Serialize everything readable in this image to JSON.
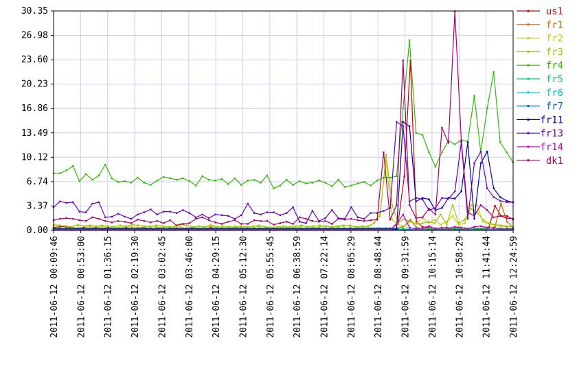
{
  "chart_data": {
    "type": "line",
    "title": "",
    "xlabel": "",
    "ylabel": "",
    "ylim": [
      0,
      30.35
    ],
    "grid": true,
    "legend_position": "right",
    "y_ticks": [
      "0.00",
      "3.37",
      "6.74",
      "10.12",
      "13.49",
      "16.86",
      "20.23",
      "23.60",
      "26.98",
      "30.35"
    ],
    "x_ticks": [
      "2011-06-12 00:09:46",
      "2011-06-12 00:53:00",
      "2011-06-12 01:36:15",
      "2011-06-12 02:19:30",
      "2011-06-12 03:02:45",
      "2011-06-12 03:46:00",
      "2011-06-12 04:29:15",
      "2011-06-12 05:12:30",
      "2011-06-12 05:55:45",
      "2011-06-12 06:38:59",
      "2011-06-12 07:22:14",
      "2011-06-12 08:05:29",
      "2011-06-12 08:48:44",
      "2011-06-12 09:31:59",
      "2011-06-12 10:15:14",
      "2011-06-12 10:58:29",
      "2011-06-12 11:41:44",
      "2011-06-12 12:24:59"
    ],
    "x_start": "2011-06-12 00:09:46",
    "x_end": "2011-06-12 12:24:59",
    "series": [
      {
        "name": "us1",
        "color": "#cc0000",
        "values": [
          0.4,
          0.5,
          0.5,
          0.4,
          0.3,
          0.4,
          0.3,
          0.4,
          0.3,
          0.4,
          0.3,
          0.3,
          0.4,
          0.3,
          0.3,
          0.4,
          0.3,
          0.3,
          0.4,
          0.5,
          0.4,
          0.3,
          0.3,
          0.4,
          0.3,
          0.3,
          0.4,
          0.3,
          0.3,
          0.3,
          0.4,
          0.3,
          0.3,
          0.3,
          0.3,
          0.3,
          0.3,
          0.3,
          0.3,
          0.3,
          0.3,
          0.3,
          0.3,
          0.3,
          0.3,
          0.3,
          0.3,
          0.3,
          0.3,
          0.3,
          0.3,
          0.3,
          0.3,
          0.3,
          0.3,
          0.3,
          0.3,
          1.2,
          7.5,
          23.5,
          1.2,
          0.5,
          0.4,
          0.3,
          0.3,
          0.4,
          0.3,
          0.4,
          0.3,
          0.3,
          0.3,
          0.3,
          0.4,
          3.4,
          2.0,
          2.0,
          1.5
        ]
      },
      {
        "name": "fr1",
        "color": "#cc6600",
        "values": [
          0.2,
          0.2,
          0.2,
          0.2,
          0.3,
          0.2,
          0.2,
          0.2,
          0.2,
          0.2,
          0.2,
          0.2,
          0.2,
          0.2,
          0.2,
          0.2,
          0.2,
          0.2,
          0.2,
          0.2,
          0.2,
          0.2,
          0.2,
          0.2,
          0.2,
          0.2,
          0.2,
          0.2,
          0.2,
          0.2,
          0.2,
          0.2,
          0.2,
          0.2,
          0.2,
          0.2,
          0.2,
          0.2,
          0.2,
          0.2,
          0.2,
          0.2,
          0.2,
          0.2,
          0.2,
          0.2,
          0.2,
          0.2,
          0.2,
          0.2,
          0.2,
          0.2,
          0.2,
          0.2,
          0.2,
          0.2,
          0.2,
          0.3,
          0.6,
          1.5,
          0.4,
          0.3,
          0.2,
          0.2,
          0.2,
          0.2,
          0.2,
          0.2,
          0.2,
          0.3,
          0.2,
          0.2,
          0.3,
          0.5,
          3.7,
          1.2,
          0.4
        ]
      },
      {
        "name": "fr2",
        "color": "#cccc00",
        "values": [
          0.6,
          0.7,
          0.6,
          0.5,
          0.8,
          0.6,
          0.5,
          0.6,
          0.5,
          0.6,
          0.5,
          0.4,
          0.6,
          0.5,
          0.4,
          0.5,
          0.6,
          0.5,
          0.4,
          0.5,
          0.4,
          0.6,
          0.7,
          0.5,
          0.6,
          0.4,
          0.8,
          0.5,
          0.4,
          0.5,
          0.6,
          0.4,
          0.5,
          0.4,
          0.6,
          0.5,
          0.4,
          0.5,
          0.4,
          0.5,
          0.4,
          0.6,
          0.5,
          0.4,
          0.5,
          0.6,
          0.4,
          0.5,
          0.6,
          0.7,
          0.5,
          0.4,
          0.6,
          1.0,
          2.5,
          9.5,
          1.5,
          0.8,
          0.6,
          1.2,
          0.9,
          1.8,
          1.0,
          1.5,
          0.8,
          1.2,
          2.0,
          0.8,
          1.0,
          3.5,
          3.5,
          1.2,
          0.9,
          0.7,
          0.6,
          0.5,
          0.5
        ]
      },
      {
        "name": "fr3",
        "color": "#99cc00",
        "values": [
          0.8,
          0.7,
          0.6,
          0.5,
          0.7,
          0.6,
          0.7,
          0.6,
          0.7,
          0.6,
          0.5,
          0.7,
          0.6,
          0.8,
          0.7,
          0.6,
          0.5,
          0.7,
          0.6,
          0.5,
          0.6,
          0.9,
          0.7,
          0.5,
          0.6,
          0.5,
          0.6,
          0.5,
          0.6,
          0.5,
          0.4,
          0.6,
          0.5,
          0.6,
          0.7,
          0.5,
          0.4,
          0.5,
          0.6,
          0.5,
          0.6,
          0.7,
          0.5,
          0.6,
          0.7,
          0.6,
          0.5,
          0.6,
          0.7,
          0.6,
          0.5,
          0.6,
          0.5,
          1.0,
          2.0,
          10.5,
          3.5,
          1.0,
          1.6,
          1.2,
          0.9,
          1.0,
          1.2,
          1.0,
          2.2,
          0.8,
          3.5,
          1.0,
          1.5,
          3.0,
          2.5,
          1.5,
          1.0,
          0.8,
          0.7,
          0.6,
          0.5
        ]
      },
      {
        "name": "fr4",
        "color": "#33bb00",
        "values": [
          7.9,
          7.9,
          8.3,
          8.9,
          6.8,
          7.8,
          7.0,
          7.6,
          9.1,
          7.2,
          6.7,
          6.8,
          6.6,
          7.3,
          6.6,
          6.3,
          6.9,
          7.4,
          7.2,
          7.0,
          7.2,
          6.8,
          6.2,
          7.5,
          7.0,
          6.9,
          7.1,
          6.4,
          7.2,
          6.3,
          6.9,
          7.0,
          6.6,
          7.6,
          5.8,
          6.2,
          7.0,
          6.3,
          6.8,
          6.5,
          6.6,
          6.9,
          6.6,
          6.1,
          7.0,
          6.0,
          6.2,
          6.5,
          6.7,
          6.2,
          6.9,
          7.3,
          7.3,
          7.5,
          16.9,
          26.3,
          13.5,
          13.2,
          10.8,
          8.8,
          10.8,
          12.4,
          11.9,
          12.5,
          12.3,
          18.6,
          10.8,
          16.9,
          21.9,
          12.2,
          10.8,
          9.4
        ]
      },
      {
        "name": "fr5",
        "color": "#00cc66",
        "values": [
          0.3,
          0.3,
          0.3,
          0.3,
          0.3,
          0.3,
          0.3,
          0.3,
          0.3,
          0.3,
          0.3,
          0.3,
          0.3,
          0.3,
          0.3,
          0.3,
          0.3,
          0.3,
          0.3,
          0.3,
          0.3,
          0.3,
          0.3,
          0.3,
          0.3,
          0.3,
          0.3,
          0.3,
          0.3,
          0.3,
          0.3,
          0.3,
          0.3,
          0.3,
          0.3,
          0.3,
          0.3,
          0.3,
          0.3,
          0.3,
          0.3,
          0.3,
          0.3,
          0.3,
          0.3,
          0.3,
          0.3,
          0.3,
          0.3,
          0.3,
          0.3,
          0.3,
          0.3,
          0.3,
          0.3,
          0.3,
          0.3,
          0.3,
          0.3,
          0.3,
          0.3,
          0.3,
          0.3,
          0.3,
          0.3,
          0.3,
          0.3,
          0.3,
          0.3,
          0.3,
          0.3,
          0.3
        ]
      },
      {
        "name": "fr6",
        "color": "#00cccc",
        "values": [
          0.1,
          0.1,
          0.1,
          0.1,
          0.1,
          0.1,
          0.1,
          0.1,
          0.1,
          0.1,
          0.1,
          0.1,
          0.1,
          0.1,
          0.1,
          0.1,
          0.1,
          0.1,
          0.1,
          0.1,
          0.1,
          0.1,
          0.1,
          0.1,
          0.1,
          0.1,
          0.1,
          0.1,
          0.1,
          0.1,
          0.1,
          0.1,
          0.1,
          0.1,
          0.1,
          0.1,
          0.1,
          0.1,
          0.1,
          0.1,
          0.1,
          0.1,
          0.1,
          0.1,
          0.1,
          0.1,
          0.1,
          0.1,
          0.1,
          0.1,
          0.1,
          0.1,
          0.1,
          0.1,
          0.1,
          0.1,
          0.1,
          0.1,
          0.1,
          0.1,
          0.1,
          0.1,
          0.1,
          0.1,
          0.1,
          0.1,
          0.1,
          0.1,
          0.1,
          0.1,
          0.1,
          0.1
        ]
      },
      {
        "name": "fr7",
        "color": "#0066cc",
        "values": [
          0.1,
          0.1,
          0.1,
          0.1,
          0.1,
          0.1,
          0.1,
          0.1,
          0.1,
          0.1,
          0.1,
          0.1,
          0.1,
          0.1,
          0.1,
          0.1,
          0.1,
          0.1,
          0.1,
          0.1,
          0.1,
          0.1,
          0.1,
          0.1,
          0.1,
          0.1,
          0.1,
          0.1,
          0.1,
          0.1,
          0.1,
          0.1,
          0.1,
          0.1,
          0.1,
          0.1,
          0.1,
          0.1,
          0.1,
          0.1,
          0.1,
          0.1,
          0.1,
          0.1,
          0.1,
          0.1,
          0.1,
          0.1,
          0.1,
          0.1,
          0.1,
          0.1,
          0.1,
          0.1,
          0.1,
          0.1,
          0.1,
          0.1,
          0.1,
          0.1,
          0.1,
          0.1,
          0.1,
          0.1,
          0.1,
          0.1,
          0.1,
          0.1,
          0.1,
          0.1,
          0.1,
          0.1
        ]
      },
      {
        "name": "fr11",
        "color": "#0000aa",
        "values": [
          0.2,
          0.2,
          0.2,
          0.2,
          0.2,
          0.2,
          0.2,
          0.2,
          0.2,
          0.2,
          0.2,
          0.2,
          0.2,
          0.2,
          0.2,
          0.2,
          0.2,
          0.2,
          0.2,
          0.2,
          0.2,
          0.2,
          0.2,
          0.2,
          0.2,
          0.2,
          0.2,
          0.2,
          0.2,
          0.2,
          0.2,
          0.2,
          0.2,
          0.2,
          0.2,
          0.2,
          0.2,
          0.2,
          0.2,
          0.2,
          0.2,
          0.2,
          0.2,
          0.2,
          0.2,
          0.2,
          0.2,
          0.2,
          0.2,
          0.2,
          0.2,
          0.2,
          0.2,
          0.2,
          15.0,
          14.4,
          4.0,
          4.5,
          4.3,
          2.8,
          3.1,
          4.5,
          4.4,
          5.4,
          12.2,
          1.6,
          9.3,
          10.9,
          5.8,
          4.6,
          4.1,
          3.9
        ]
      },
      {
        "name": "fr13",
        "color": "#6600cc",
        "values": [
          3.2,
          4.0,
          3.8,
          3.9,
          2.6,
          2.5,
          3.7,
          3.9,
          1.8,
          1.9,
          2.3,
          1.9,
          1.6,
          2.2,
          2.5,
          2.9,
          2.2,
          2.6,
          2.6,
          2.4,
          2.8,
          2.4,
          1.8,
          2.2,
          1.7,
          2.2,
          2.1,
          2.0,
          1.6,
          2.1,
          3.7,
          2.4,
          2.2,
          2.5,
          2.5,
          2.1,
          2.4,
          3.2,
          1.2,
          1.0,
          2.7,
          1.3,
          1.7,
          2.8,
          1.7,
          1.6,
          3.2,
          1.8,
          1.6,
          2.4,
          2.4,
          2.7,
          3.1,
          15.0,
          14.4,
          4.0,
          4.5,
          4.3,
          2.8,
          3.1,
          4.5,
          4.4,
          5.4,
          12.2,
          1.6,
          9.3,
          10.9,
          5.8,
          4.6,
          4.1,
          3.9,
          3.9
        ]
      },
      {
        "name": "fr14",
        "color": "#cc00cc",
        "values": [
          0.1,
          0.1,
          0.1,
          0.1,
          0.1,
          0.1,
          0.1,
          0.1,
          0.1,
          0.1,
          0.1,
          0.1,
          0.1,
          0.1,
          0.1,
          0.1,
          0.1,
          0.1,
          0.1,
          0.1,
          0.1,
          0.1,
          0.1,
          0.1,
          0.1,
          0.1,
          0.1,
          0.1,
          0.1,
          0.1,
          0.1,
          0.1,
          0.1,
          0.1,
          0.1,
          0.1,
          0.1,
          0.1,
          0.1,
          0.1,
          0.1,
          0.1,
          0.1,
          0.1,
          0.1,
          0.1,
          0.1,
          0.1,
          0.1,
          0.1,
          0.1,
          0.1,
          0.1,
          0.8,
          2.2,
          0.4,
          0.2,
          0.3,
          0.6,
          0.2,
          0.4,
          0.3,
          0.5,
          0.4,
          0.2,
          0.5,
          0.6,
          0.4,
          0.3,
          0.2,
          0.2,
          0.2
        ]
      },
      {
        "name": "dk1",
        "color": "#aa0066",
        "values": [
          1.4,
          1.6,
          1.7,
          1.6,
          1.4,
          1.3,
          1.8,
          1.6,
          1.3,
          1.1,
          1.3,
          1.2,
          1.0,
          1.5,
          1.3,
          1.1,
          1.3,
          1.0,
          1.4,
          0.7,
          0.9,
          1.0,
          1.6,
          1.8,
          1.4,
          1.1,
          0.9,
          1.2,
          1.4,
          0.9,
          0.9,
          1.4,
          1.3,
          1.3,
          0.8,
          1.0,
          1.2,
          0.9,
          1.8,
          1.6,
          1.3,
          1.2,
          1.3,
          0.9,
          1.6,
          1.5,
          1.6,
          1.4,
          1.3,
          1.4,
          1.5,
          10.8,
          1.5,
          3.5,
          23.5,
          3.5,
          1.7,
          1.8,
          3.0,
          2.2,
          14.2,
          12.1,
          30.3,
          12.4,
          2.5,
          2.0,
          3.5,
          2.8,
          1.8,
          2.0,
          1.7,
          1.6
        ]
      }
    ]
  }
}
